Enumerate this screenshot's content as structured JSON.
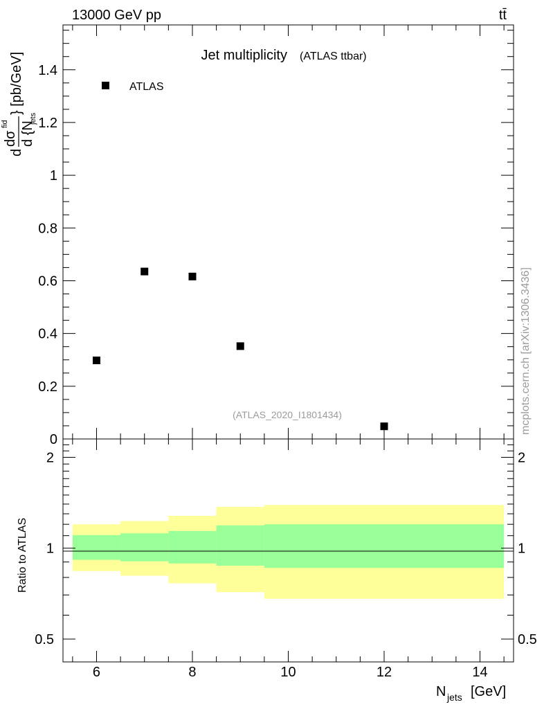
{
  "header": {
    "energy_label": "13000 GeV pp",
    "process_label": "tt̄"
  },
  "side_label": "mcplots.cern.ch [arXiv:1306.3436]",
  "analysis_label": "(ATLAS_2020_I1801434)",
  "title": {
    "main": "Jet multiplicity",
    "sub": "(ATLAS ttbar)"
  },
  "legend": {
    "entry": "ATLAS",
    "position": "top-left"
  },
  "y_axis_label": {
    "prefix": "d",
    "numerator": "dσ",
    "numerator_sup": "fid",
    "denominator": "d {N",
    "denominator_sub": "jets",
    "suffix": "} [pb/GeV]"
  },
  "ratio_axis_label": "Ratio to ATLAS",
  "x_axis_label": {
    "main": "N",
    "sub": "jets",
    "unit": "[GeV]"
  },
  "colors": {
    "marker": "#000000",
    "band_inner": "#99ff99",
    "band_outer": "#ffff99"
  },
  "chart_data": [
    {
      "type": "scatter",
      "panel": "main",
      "x": [
        6,
        7,
        8,
        9,
        12
      ],
      "y": [
        0.298,
        0.635,
        0.616,
        0.352,
        0.048
      ],
      "series": [
        {
          "name": "ATLAS",
          "x": [
            6,
            7,
            8,
            9,
            12
          ],
          "values": [
            0.298,
            0.635,
            0.616,
            0.352,
            0.048
          ]
        }
      ],
      "xlim": [
        5.3,
        14.7
      ],
      "ylim": [
        0,
        1.57
      ],
      "y_ticks": [
        0,
        0.2,
        0.4,
        0.6,
        0.8,
        1,
        1.2,
        1.4
      ],
      "y_tick_labels": [
        "0",
        "0.2",
        "0.4",
        "0.6",
        "0.8",
        "1",
        "1.2",
        "1.4"
      ]
    },
    {
      "type": "area",
      "panel": "ratio",
      "y_scale": "log",
      "ylim": [
        0.42,
        2.3
      ],
      "x_ticks": [
        6,
        8,
        10,
        12,
        14
      ],
      "x_tick_labels": [
        "6",
        "8",
        "10",
        "12",
        "14"
      ],
      "y_ticks": [
        0.5,
        1,
        2
      ],
      "y_tick_labels": [
        "0.5",
        "1",
        "2"
      ],
      "reference_line": 1,
      "bins": [
        {
          "lo": 5.5,
          "hi": 6.5,
          "inner": [
            0.915,
            1.105
          ],
          "outer": [
            0.84,
            1.2
          ]
        },
        {
          "lo": 6.5,
          "hi": 7.5,
          "inner": [
            0.905,
            1.12
          ],
          "outer": [
            0.81,
            1.23
          ]
        },
        {
          "lo": 7.5,
          "hi": 8.5,
          "inner": [
            0.89,
            1.14
          ],
          "outer": [
            0.765,
            1.28
          ]
        },
        {
          "lo": 8.5,
          "hi": 9.5,
          "inner": [
            0.875,
            1.19
          ],
          "outer": [
            0.715,
            1.37
          ]
        },
        {
          "lo": 9.5,
          "hi": 14.5,
          "inner": [
            0.86,
            1.2
          ],
          "outer": [
            0.68,
            1.39
          ]
        }
      ]
    }
  ]
}
